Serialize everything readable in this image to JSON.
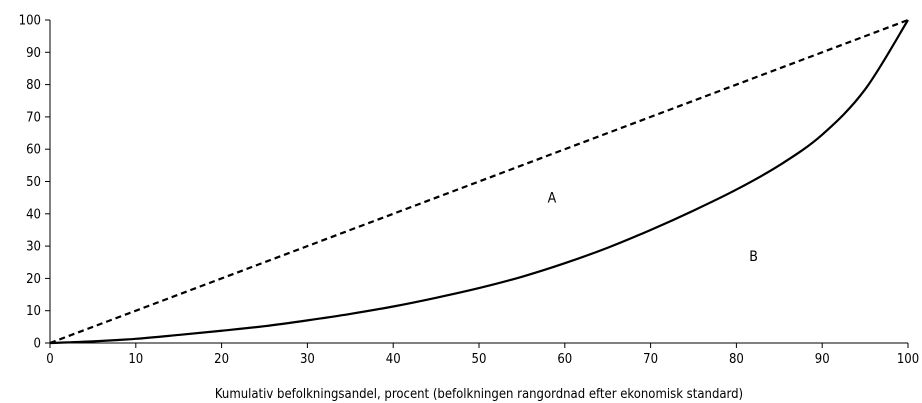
{
  "chart_data": {
    "type": "line",
    "title": "",
    "xlabel": "Kumulativ befolkningsandel, procent (befolkningen rangordnad efter ekonomisk standard)",
    "ylabel": "",
    "xlim": [
      0,
      100
    ],
    "ylim": [
      0,
      100
    ],
    "xticks": [
      "0",
      "10",
      "20",
      "30",
      "40",
      "50",
      "60",
      "70",
      "80",
      "90",
      "100"
    ],
    "yticks": [
      "0",
      "10",
      "20",
      "30",
      "40",
      "50",
      "60",
      "70",
      "80",
      "90",
      "100"
    ],
    "grid": false,
    "legend": "none",
    "series": [
      {
        "style": "dashed",
        "color": "#000000",
        "x": [
          0,
          100
        ],
        "y": [
          0,
          100
        ]
      },
      {
        "style": "solid",
        "color": "#000000",
        "x": [
          0,
          5,
          10,
          15,
          20,
          25,
          30,
          35,
          40,
          45,
          50,
          55,
          60,
          65,
          70,
          75,
          80,
          85,
          90,
          95,
          100
        ],
        "y": [
          0,
          0.5,
          1.3,
          2.5,
          3.8,
          5.2,
          7.0,
          9.0,
          11.3,
          14.0,
          17.0,
          20.5,
          24.7,
          29.5,
          35.0,
          41.0,
          47.5,
          55.0,
          64.5,
          78.5,
          100
        ]
      }
    ],
    "annotations": [
      {
        "text": "A",
        "x": 58.5,
        "y": 45
      },
      {
        "text": "B",
        "x": 82,
        "y": 27
      }
    ]
  }
}
